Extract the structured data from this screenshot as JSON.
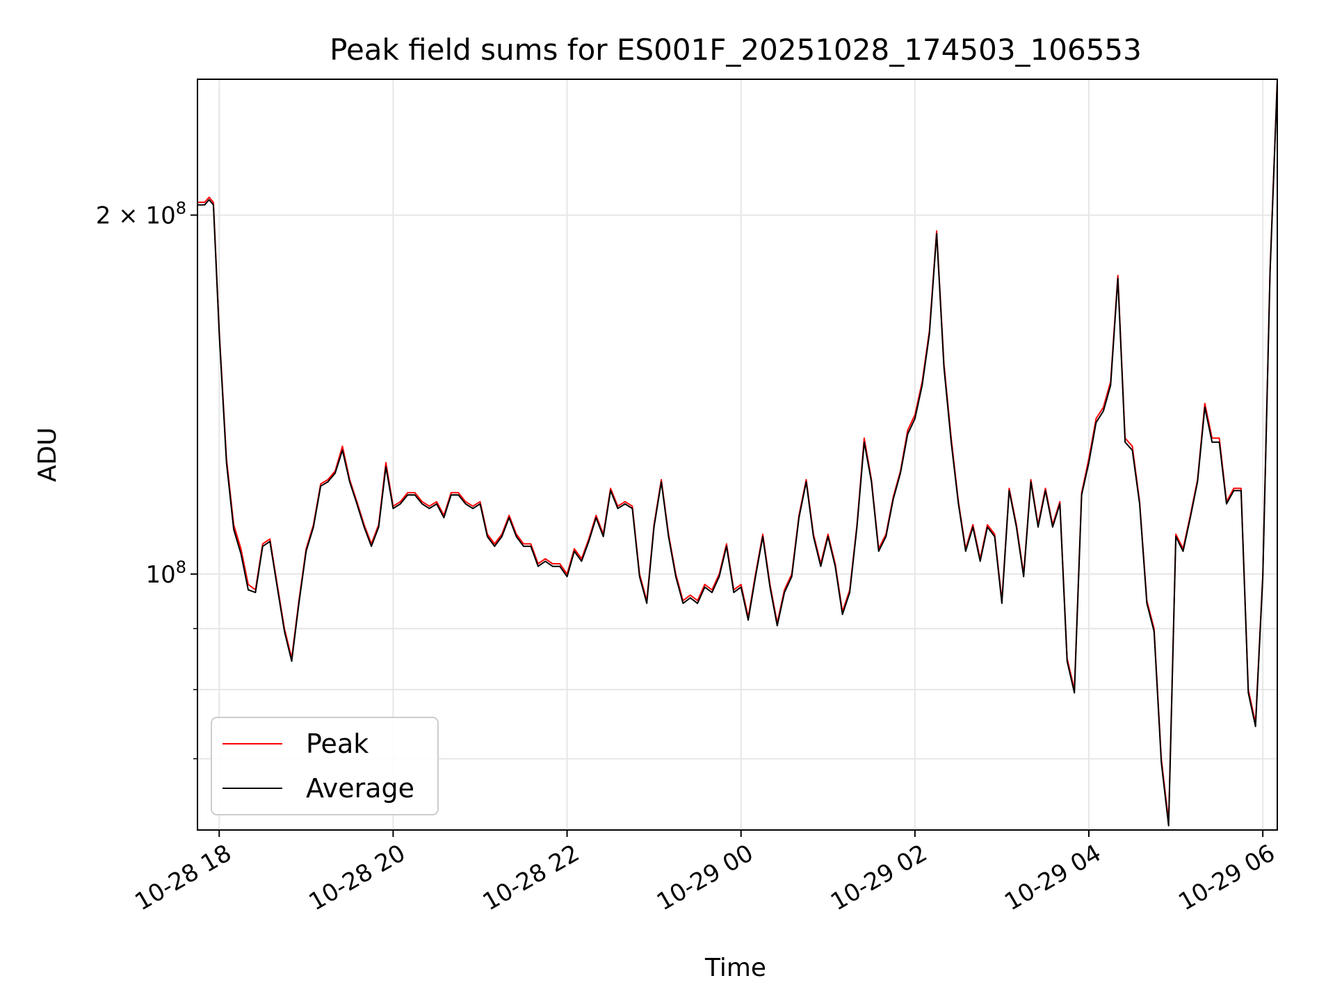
{
  "chart_data": {
    "type": "line",
    "title": "Peak field sums for ES001F_20251028_174503_106553",
    "xlabel": "Time",
    "ylabel": "ADU",
    "x_scale": "time",
    "y_scale": "log",
    "xlim": [
      "2025-10-28 17:45",
      "2025-10-29 06:10"
    ],
    "ylim": [
      61000000.0,
      260000000.0
    ],
    "grid": true,
    "legend": "lower-left",
    "x_ticks": [
      {
        "value": "2025-10-28 18:00",
        "label": "10-28 18"
      },
      {
        "value": "2025-10-28 20:00",
        "label": "10-28 20"
      },
      {
        "value": "2025-10-28 22:00",
        "label": "10-28 22"
      },
      {
        "value": "2025-10-29 00:00",
        "label": "10-29 00"
      },
      {
        "value": "2025-10-29 02:00",
        "label": "10-29 02"
      },
      {
        "value": "2025-10-29 04:00",
        "label": "10-29 04"
      },
      {
        "value": "2025-10-29 06:00",
        "label": "10-29 06"
      }
    ],
    "y_major_ticks": [
      {
        "value": 100000000,
        "base": "10",
        "exp": "8",
        "coef": ""
      },
      {
        "value": 200000000,
        "base": "10",
        "exp": "8",
        "coef": "2"
      }
    ],
    "y_minor_ticks": [
      70000000,
      80000000,
      90000000
    ],
    "series": [
      {
        "name": "Peak",
        "color": "#ff0000",
        "x": [
          "2025-10-28 17:45",
          "2025-10-28 17:50",
          "2025-10-28 17:53",
          "2025-10-28 17:56",
          "2025-10-28 18:00",
          "2025-10-28 18:05",
          "2025-10-28 18:10",
          "2025-10-28 18:15",
          "2025-10-28 18:20",
          "2025-10-28 18:25",
          "2025-10-28 18:30",
          "2025-10-28 18:35",
          "2025-10-28 18:40",
          "2025-10-28 18:45",
          "2025-10-28 18:50",
          "2025-10-28 18:55",
          "2025-10-28 19:00",
          "2025-10-28 19:05",
          "2025-10-28 19:10",
          "2025-10-28 19:15",
          "2025-10-28 19:20",
          "2025-10-28 19:25",
          "2025-10-28 19:30",
          "2025-10-28 19:35",
          "2025-10-28 19:40",
          "2025-10-28 19:45",
          "2025-10-28 19:50",
          "2025-10-28 19:55",
          "2025-10-28 20:00",
          "2025-10-28 20:05",
          "2025-10-28 20:10",
          "2025-10-28 20:15",
          "2025-10-28 20:20",
          "2025-10-28 20:25",
          "2025-10-28 20:30",
          "2025-10-28 20:35",
          "2025-10-28 20:40",
          "2025-10-28 20:45",
          "2025-10-28 20:50",
          "2025-10-28 20:55",
          "2025-10-28 21:00",
          "2025-10-28 21:05",
          "2025-10-28 21:10",
          "2025-10-28 21:15",
          "2025-10-28 21:20",
          "2025-10-28 21:25",
          "2025-10-28 21:30",
          "2025-10-28 21:35",
          "2025-10-28 21:40",
          "2025-10-28 21:45",
          "2025-10-28 21:50",
          "2025-10-28 21:55",
          "2025-10-28 22:00",
          "2025-10-28 22:05",
          "2025-10-28 22:10",
          "2025-10-28 22:15",
          "2025-10-28 22:20",
          "2025-10-28 22:25",
          "2025-10-28 22:30",
          "2025-10-28 22:35",
          "2025-10-28 22:40",
          "2025-10-28 22:45",
          "2025-10-28 22:50",
          "2025-10-28 22:55",
          "2025-10-28 23:00",
          "2025-10-28 23:05",
          "2025-10-28 23:10",
          "2025-10-28 23:15",
          "2025-10-28 23:20",
          "2025-10-28 23:25",
          "2025-10-28 23:30",
          "2025-10-28 23:35",
          "2025-10-28 23:40",
          "2025-10-28 23:45",
          "2025-10-28 23:50",
          "2025-10-28 23:55",
          "2025-10-29 00:00",
          "2025-10-29 00:05",
          "2025-10-29 00:10",
          "2025-10-29 00:15",
          "2025-10-29 00:20",
          "2025-10-29 00:25",
          "2025-10-29 00:30",
          "2025-10-29 00:35",
          "2025-10-29 00:40",
          "2025-10-29 00:45",
          "2025-10-29 00:50",
          "2025-10-29 00:55",
          "2025-10-29 01:00",
          "2025-10-29 01:05",
          "2025-10-29 01:10",
          "2025-10-29 01:15",
          "2025-10-29 01:20",
          "2025-10-29 01:25",
          "2025-10-29 01:30",
          "2025-10-29 01:35",
          "2025-10-29 01:40",
          "2025-10-29 01:45",
          "2025-10-29 01:50",
          "2025-10-29 01:55",
          "2025-10-29 02:00",
          "2025-10-29 02:05",
          "2025-10-29 02:10",
          "2025-10-29 02:15",
          "2025-10-29 02:20",
          "2025-10-29 02:25",
          "2025-10-29 02:30",
          "2025-10-29 02:35",
          "2025-10-29 02:40",
          "2025-10-29 02:45",
          "2025-10-29 02:50",
          "2025-10-29 02:55",
          "2025-10-29 03:00",
          "2025-10-29 03:05",
          "2025-10-29 03:10",
          "2025-10-29 03:15",
          "2025-10-29 03:20",
          "2025-10-29 03:25",
          "2025-10-29 03:30",
          "2025-10-29 03:35",
          "2025-10-29 03:40",
          "2025-10-29 03:45",
          "2025-10-29 03:50",
          "2025-10-29 03:55",
          "2025-10-29 04:00",
          "2025-10-29 04:05",
          "2025-10-29 04:10",
          "2025-10-29 04:15",
          "2025-10-29 04:20",
          "2025-10-29 04:25",
          "2025-10-29 04:30",
          "2025-10-29 04:35",
          "2025-10-29 04:40",
          "2025-10-29 04:45",
          "2025-10-29 04:50",
          "2025-10-29 04:55",
          "2025-10-29 05:00",
          "2025-10-29 05:05",
          "2025-10-29 05:10",
          "2025-10-29 05:15",
          "2025-10-29 05:20",
          "2025-10-29 05:25",
          "2025-10-29 05:30",
          "2025-10-29 05:35",
          "2025-10-29 05:40",
          "2025-10-29 05:45",
          "2025-10-29 05:50",
          "2025-10-29 05:55",
          "2025-10-29 06:00",
          "2025-10-29 06:05",
          "2025-10-29 06:10"
        ],
        "values": [
          205000000.0,
          205000000.0,
          207000000.0,
          205000000.0,
          160000000.0,
          125000000.0,
          110000000.0,
          105000000.0,
          98000000.0,
          97000000.0,
          106000000.0,
          107000000.0,
          98000000.0,
          90000000.0,
          85000000.0,
          95000000.0,
          105000000.0,
          110000000.0,
          119000000.0,
          120000000.0,
          122000000.0,
          128000000.0,
          120000000.0,
          115000000.0,
          110000000.0,
          106000000.0,
          110000000.0,
          124000000.0,
          114000000.0,
          115000000.0,
          117000000.0,
          117000000.0,
          115000000.0,
          114000000.0,
          115000000.0,
          112000000.0,
          117000000.0,
          117000000.0,
          115000000.0,
          114000000.0,
          115000000.0,
          108000000.0,
          106000000.0,
          108000000.0,
          112000000.0,
          108000000.0,
          106000000.0,
          106000000.0,
          102000000.0,
          103000000.0,
          102000000.0,
          102000000.0,
          100000000.0,
          105000000.0,
          103000000.0,
          107000000.0,
          112000000.0,
          108000000.0,
          118000000.0,
          114000000.0,
          115000000.0,
          114000000.0,
          100000000.0,
          95000000.0,
          110000000.0,
          120000000.0,
          108000000.0,
          100000000.0,
          95000000.0,
          96000000.0,
          95000000.0,
          98000000.0,
          97000000.0,
          100000000.0,
          106000000.0,
          97000000.0,
          98000000.0,
          92000000.0,
          100000000.0,
          108000000.0,
          98000000.0,
          91000000.0,
          97000000.0,
          100000000.0,
          112000000.0,
          120000000.0,
          108000000.0,
          102000000.0,
          108000000.0,
          102000000.0,
          93000000.0,
          97000000.0,
          110000000.0,
          130000000.0,
          120000000.0,
          105000000.0,
          108000000.0,
          116000000.0,
          122000000.0,
          132000000.0,
          136000000.0,
          145000000.0,
          160000000.0,
          194000000.0,
          150000000.0,
          130000000.0,
          115000000.0,
          105000000.0,
          110000000.0,
          103000000.0,
          110000000.0,
          108000000.0,
          95000000.0,
          118000000.0,
          110000000.0,
          100000000.0,
          120000000.0,
          110000000.0,
          118000000.0,
          110000000.0,
          115000000.0,
          85000000.0,
          80000000.0,
          117000000.0,
          125000000.0,
          135000000.0,
          138000000.0,
          145000000.0,
          178000000.0,
          130000000.0,
          128000000.0,
          115000000.0,
          95000000.0,
          90000000.0,
          70000000.0,
          62000000.0,
          108000000.0,
          105000000.0,
          112000000.0,
          120000000.0,
          139000000.0,
          130000000.0,
          130000000.0,
          115000000.0,
          118000000.0,
          118000000.0,
          80000000.0,
          75000000.0,
          100000000.0,
          180000000.0,
          260000000.0
        ]
      },
      {
        "name": "Average",
        "color": "#000000",
        "x": [
          "2025-10-28 17:45",
          "2025-10-28 17:50",
          "2025-10-28 17:53",
          "2025-10-28 17:56",
          "2025-10-28 18:00",
          "2025-10-28 18:05",
          "2025-10-28 18:10",
          "2025-10-28 18:15",
          "2025-10-28 18:20",
          "2025-10-28 18:25",
          "2025-10-28 18:30",
          "2025-10-28 18:35",
          "2025-10-28 18:40",
          "2025-10-28 18:45",
          "2025-10-28 18:50",
          "2025-10-28 18:55",
          "2025-10-28 19:00",
          "2025-10-28 19:05",
          "2025-10-28 19:10",
          "2025-10-28 19:15",
          "2025-10-28 19:20",
          "2025-10-28 19:25",
          "2025-10-28 19:30",
          "2025-10-28 19:35",
          "2025-10-28 19:40",
          "2025-10-28 19:45",
          "2025-10-28 19:50",
          "2025-10-28 19:55",
          "2025-10-28 20:00",
          "2025-10-28 20:05",
          "2025-10-28 20:10",
          "2025-10-28 20:15",
          "2025-10-28 20:20",
          "2025-10-28 20:25",
          "2025-10-28 20:30",
          "2025-10-28 20:35",
          "2025-10-28 20:40",
          "2025-10-28 20:45",
          "2025-10-28 20:50",
          "2025-10-28 20:55",
          "2025-10-28 21:00",
          "2025-10-28 21:05",
          "2025-10-28 21:10",
          "2025-10-28 21:15",
          "2025-10-28 21:20",
          "2025-10-28 21:25",
          "2025-10-28 21:30",
          "2025-10-28 21:35",
          "2025-10-28 21:40",
          "2025-10-28 21:45",
          "2025-10-28 21:50",
          "2025-10-28 21:55",
          "2025-10-28 22:00",
          "2025-10-28 22:05",
          "2025-10-28 22:10",
          "2025-10-28 22:15",
          "2025-10-28 22:20",
          "2025-10-28 22:25",
          "2025-10-28 22:30",
          "2025-10-28 22:35",
          "2025-10-28 22:40",
          "2025-10-28 22:45",
          "2025-10-28 22:50",
          "2025-10-28 22:55",
          "2025-10-28 23:00",
          "2025-10-28 23:05",
          "2025-10-28 23:10",
          "2025-10-28 23:15",
          "2025-10-28 23:20",
          "2025-10-28 23:25",
          "2025-10-28 23:30",
          "2025-10-28 23:35",
          "2025-10-28 23:40",
          "2025-10-28 23:45",
          "2025-10-28 23:50",
          "2025-10-28 23:55",
          "2025-10-29 00:00",
          "2025-10-29 00:05",
          "2025-10-29 00:10",
          "2025-10-29 00:15",
          "2025-10-29 00:20",
          "2025-10-29 00:25",
          "2025-10-29 00:30",
          "2025-10-29 00:35",
          "2025-10-29 00:40",
          "2025-10-29 00:45",
          "2025-10-29 00:50",
          "2025-10-29 00:55",
          "2025-10-29 01:00",
          "2025-10-29 01:05",
          "2025-10-29 01:10",
          "2025-10-29 01:15",
          "2025-10-29 01:20",
          "2025-10-29 01:25",
          "2025-10-29 01:30",
          "2025-10-29 01:35",
          "2025-10-29 01:40",
          "2025-10-29 01:45",
          "2025-10-29 01:50",
          "2025-10-29 01:55",
          "2025-10-29 02:00",
          "2025-10-29 02:05",
          "2025-10-29 02:10",
          "2025-10-29 02:15",
          "2025-10-29 02:20",
          "2025-10-29 02:25",
          "2025-10-29 02:30",
          "2025-10-29 02:35",
          "2025-10-29 02:40",
          "2025-10-29 02:45",
          "2025-10-29 02:50",
          "2025-10-29 02:55",
          "2025-10-29 03:00",
          "2025-10-29 03:05",
          "2025-10-29 03:10",
          "2025-10-29 03:15",
          "2025-10-29 03:20",
          "2025-10-29 03:25",
          "2025-10-29 03:30",
          "2025-10-29 03:35",
          "2025-10-29 03:40",
          "2025-10-29 03:45",
          "2025-10-29 03:50",
          "2025-10-29 03:55",
          "2025-10-29 04:00",
          "2025-10-29 04:05",
          "2025-10-29 04:10",
          "2025-10-29 04:15",
          "2025-10-29 04:20",
          "2025-10-29 04:25",
          "2025-10-29 04:30",
          "2025-10-29 04:35",
          "2025-10-29 04:40",
          "2025-10-29 04:45",
          "2025-10-29 04:50",
          "2025-10-29 04:55",
          "2025-10-29 05:00",
          "2025-10-29 05:05",
          "2025-10-29 05:10",
          "2025-10-29 05:15",
          "2025-10-29 05:20",
          "2025-10-29 05:25",
          "2025-10-29 05:30",
          "2025-10-29 05:35",
          "2025-10-29 05:40",
          "2025-10-29 05:45",
          "2025-10-29 05:50",
          "2025-10-29 05:55",
          "2025-10-29 06:00",
          "2025-10-29 06:05",
          "2025-10-29 06:10"
        ],
        "values": [
          204000000.0,
          204000000.0,
          206000000.0,
          204000000.0,
          159000000.0,
          124000000.0,
          109000000.0,
          104000000.0,
          97000000.0,
          96500000.0,
          105500000.0,
          106500000.0,
          97500000.0,
          89500000.0,
          84500000.0,
          94500000.0,
          104500000.0,
          109500000.0,
          118500000.0,
          119500000.0,
          121500000.0,
          127000000.0,
          119500000.0,
          114500000.0,
          109500000.0,
          105500000.0,
          109500000.0,
          123000000.0,
          113500000.0,
          114500000.0,
          116500000.0,
          116500000.0,
          114500000.0,
          113500000.0,
          114500000.0,
          111500000.0,
          116500000.0,
          116500000.0,
          114500000.0,
          113500000.0,
          114500000.0,
          107500000.0,
          105500000.0,
          107500000.0,
          111500000.0,
          107500000.0,
          105500000.0,
          105500000.0,
          101500000.0,
          102500000.0,
          101500000.0,
          101500000.0,
          99500000.0,
          104500000.0,
          102500000.0,
          106500000.0,
          111500000.0,
          107500000.0,
          117500000.0,
          113500000.0,
          114500000.0,
          113500000.0,
          99500000.0,
          94500000.0,
          109500000.0,
          119500000.0,
          107500000.0,
          99500000.0,
          94500000.0,
          95500000.0,
          94500000.0,
          97500000.0,
          96500000.0,
          99500000.0,
          105500000.0,
          96500000.0,
          97500000.0,
          91500000.0,
          99500000.0,
          107500000.0,
          97500000.0,
          90500000.0,
          96500000.0,
          99500000.0,
          111500000.0,
          119500000.0,
          107500000.0,
          101500000.0,
          107500000.0,
          101500000.0,
          92500000.0,
          96500000.0,
          109500000.0,
          129000000.0,
          119500000.0,
          104500000.0,
          107500000.0,
          115500000.0,
          121500000.0,
          131000000.0,
          135000000.0,
          144000000.0,
          159000000.0,
          193000000.0,
          149000000.0,
          129000000.0,
          114500000.0,
          104500000.0,
          109500000.0,
          102500000.0,
          109500000.0,
          107500000.0,
          94500000.0,
          117500000.0,
          109500000.0,
          99500000.0,
          119500000.0,
          109500000.0,
          117500000.0,
          109500000.0,
          114500000.0,
          84500000.0,
          79500000.0,
          116500000.0,
          124000000.0,
          134000000.0,
          137000000.0,
          144000000.0,
          177000000.0,
          129000000.0,
          127000000.0,
          114500000.0,
          94500000.0,
          89500000.0,
          69500000.0,
          61500000.0,
          107500000.0,
          104500000.0,
          111500000.0,
          119500000.0,
          138000000.0,
          129000000.0,
          129000000.0,
          114500000.0,
          117500000.0,
          117500000.0,
          79500000.0,
          74500000.0,
          99500000.0,
          179000000.0,
          259000000.0
        ]
      }
    ]
  }
}
